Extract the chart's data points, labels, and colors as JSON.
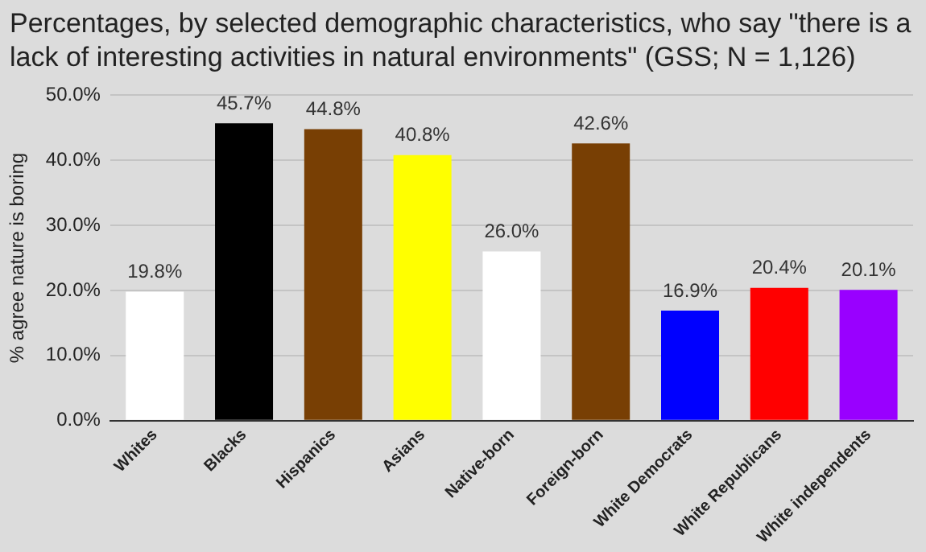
{
  "chart_data": {
    "type": "bar",
    "title": "Percentages, by selected demographic characteristics, who say \"there is a lack of interesting activities in natural environments\" (GSS; N = 1,126)",
    "ylabel": "% agree nature is boring",
    "categories": [
      "Whites",
      "Blacks",
      "Hispanics",
      "Asians",
      "Native-born",
      "Foreign-born",
      "White Democrats",
      "White Republicans",
      "White independents"
    ],
    "values": [
      19.8,
      45.7,
      44.8,
      40.8,
      26.0,
      42.6,
      16.9,
      20.4,
      20.1
    ],
    "colors": [
      "#ffffff",
      "#000000",
      "#783f04",
      "#ffff00",
      "#ffffff",
      "#783f04",
      "#0000ff",
      "#ff0000",
      "#9900ff"
    ],
    "value_labels": [
      "19.8%",
      "45.7%",
      "44.8%",
      "40.8%",
      "26.0%",
      "42.6%",
      "16.9%",
      "20.4%",
      "20.1%"
    ],
    "ylim": [
      0,
      50
    ],
    "yticks": [
      {
        "value": 0,
        "label": "0.0%"
      },
      {
        "value": 10,
        "label": "10.0%"
      },
      {
        "value": 20,
        "label": "20.0%"
      },
      {
        "value": 30,
        "label": "30.0%"
      },
      {
        "value": 40,
        "label": "40.0%"
      },
      {
        "value": 50,
        "label": "50.0%"
      }
    ],
    "grid": "y",
    "legend": false
  }
}
